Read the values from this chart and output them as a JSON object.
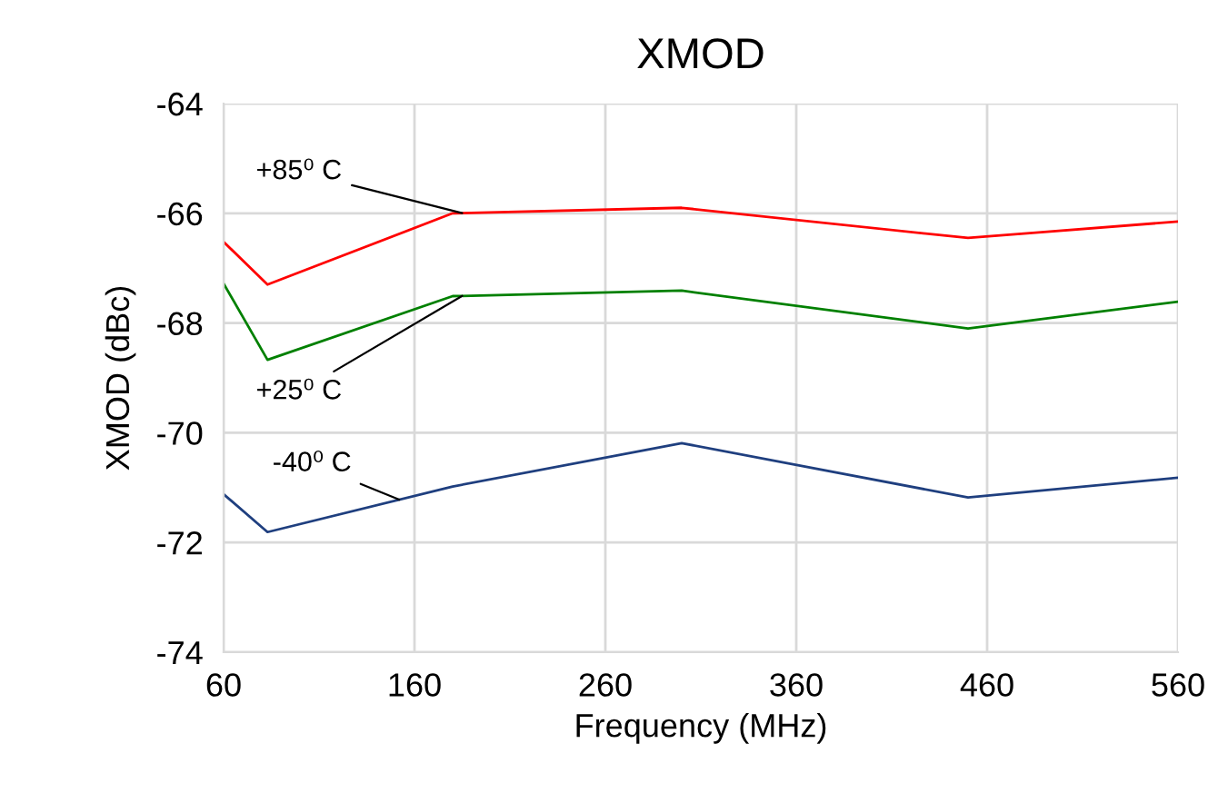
{
  "chart_data": {
    "type": "line",
    "title": "XMOD",
    "xlabel": "Frequency (MHz)",
    "ylabel": "XMOD (dBc)",
    "x": [
      60,
      83,
      180,
      300,
      450,
      560
    ],
    "series": [
      {
        "name": "+85⁰ C",
        "color": "#ff0000",
        "values": [
          -66.52,
          -67.3,
          -66.0,
          -65.9,
          -66.45,
          -66.15
        ]
      },
      {
        "name": "+25⁰ C",
        "color": "#008000",
        "values": [
          -67.28,
          -68.67,
          -67.51,
          -67.41,
          -68.1,
          -67.61
        ]
      },
      {
        "name": "-40⁰ C",
        "color": "#1f3f7f",
        "values": [
          -71.12,
          -71.81,
          -70.98,
          -70.19,
          -71.18,
          -70.82
        ]
      }
    ],
    "xlim": [
      60,
      560
    ],
    "xticks": [
      60,
      160,
      260,
      360,
      460,
      560
    ],
    "ylim": [
      -74,
      -64
    ],
    "yticks": [
      -74,
      -72,
      -70,
      -68,
      -66,
      -64
    ],
    "grid": true,
    "legend": false,
    "marker": "none",
    "line_style": "solid"
  }
}
